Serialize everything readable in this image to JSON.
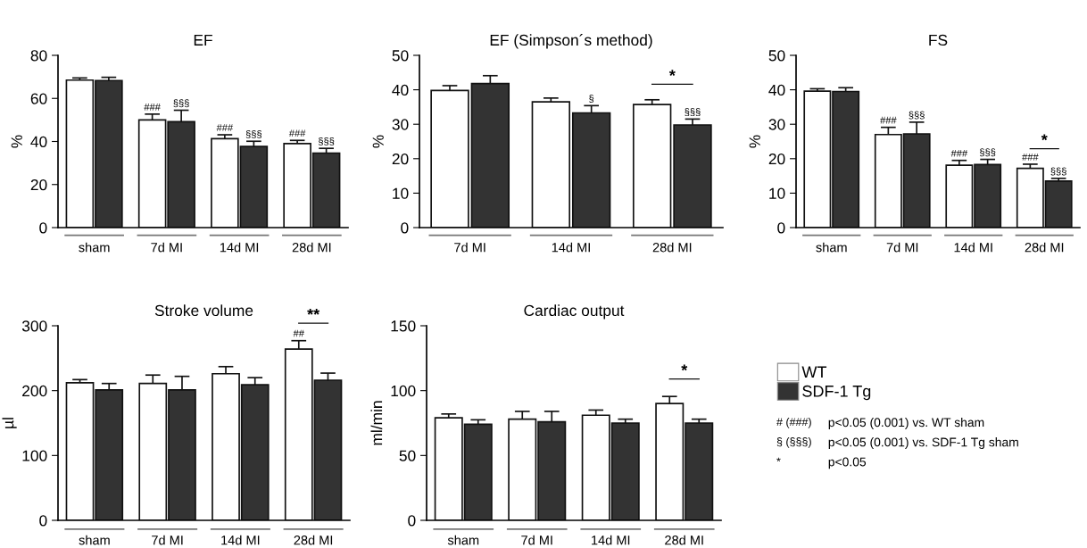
{
  "chart_data": [
    {
      "type": "bar",
      "title": "EF",
      "ylabel": "%",
      "categories": [
        "sham",
        "7d MI",
        "14d MI",
        "28d MI"
      ],
      "ylim": [
        0,
        80
      ],
      "yticks": [
        0,
        20,
        40,
        60,
        80
      ],
      "grid": false,
      "legend": false,
      "series": [
        {
          "color": "#ffffff",
          "values": [
            68.5,
            50,
            41.3,
            39
          ],
          "errors": [
            1,
            2.7,
            1.8,
            1.5
          ]
        },
        {
          "color": "#333333",
          "values": [
            68.3,
            49.2,
            37.7,
            34.6
          ],
          "errors": [
            1.5,
            5.3,
            2.4,
            2.2
          ]
        }
      ],
      "annotations": [
        {
          "text": "###",
          "x": "7d MI",
          "y": 50
        },
        {
          "text": "§§§",
          "x": "7d MI",
          "y": 49.2
        },
        {
          "text": "###",
          "x": "14d MI",
          "y": 41.3
        },
        {
          "text": "§§§",
          "x": "14d MI",
          "y": 37.7
        },
        {
          "text": "###",
          "x": "28d MI",
          "y": 39
        },
        {
          "text": "§§§",
          "x": "28d MI",
          "y": 34.6
        }
      ]
    },
    {
      "type": "bar",
      "title": "EF (Simpson´s method)",
      "ylabel": "%",
      "categories": [
        "7d MI",
        "14d MI",
        "28d MI"
      ],
      "ylim": [
        0,
        50
      ],
      "yticks": [
        0,
        10,
        20,
        30,
        40,
        50
      ],
      "grid": false,
      "legend": false,
      "series": [
        {
          "color": "#ffffff",
          "values": [
            39.8,
            36.5,
            35.7
          ],
          "errors": [
            1.4,
            1.1,
            1.4
          ]
        },
        {
          "color": "#333333",
          "values": [
            41.8,
            33.3,
            29.8
          ],
          "errors": [
            2.3,
            2.1,
            1.7
          ]
        }
      ],
      "annotations": [
        {
          "text": "§",
          "x": "14d MI",
          "y": 33.3
        },
        {
          "text": "§§§",
          "x": "28d MI",
          "y": 29.8
        },
        "*"
      ]
    },
    {
      "type": "bar",
      "title": "FS",
      "ylabel": "%",
      "categories": [
        "sham",
        "7d MI",
        "14d MI",
        "28d MI"
      ],
      "ylim": [
        0,
        50
      ],
      "yticks": [
        0,
        10,
        20,
        30,
        40,
        50
      ],
      "grid": false,
      "legend": false,
      "series": [
        {
          "color": "#ffffff",
          "values": [
            39.6,
            27,
            18.1,
            17.2
          ],
          "errors": [
            0.7,
            2.1,
            1.4,
            1.2
          ]
        },
        {
          "color": "#333333",
          "values": [
            39.5,
            27.2,
            18.3,
            13.5
          ],
          "errors": [
            1.1,
            3.4,
            1.5,
            0.8
          ]
        }
      ],
      "annotations": [
        {
          "text": "###",
          "x": "7d MI",
          "y": 27
        },
        {
          "text": "§§§",
          "x": "7d MI",
          "y": 27.2
        },
        {
          "text": "###",
          "x": "14d MI",
          "y": 18.1
        },
        {
          "text": "§§§",
          "x": "14d MI",
          "y": 18.3
        },
        {
          "text": "###",
          "x": "28d MI",
          "y": 17.2
        },
        {
          "text": "§§§",
          "x": "28d MI",
          "y": 13.5
        },
        "*"
      ]
    },
    {
      "type": "bar",
      "title": "Stroke volume",
      "ylabel": "µl",
      "categories": [
        "sham",
        "7d MI",
        "14d MI",
        "28d MI"
      ],
      "ylim": [
        0,
        300
      ],
      "yticks": [
        0,
        100,
        200,
        300
      ],
      "grid": false,
      "legend": false,
      "series": [
        {
          "color": "#ffffff",
          "values": [
            212,
            211,
            226,
            264
          ],
          "errors": [
            5,
            13,
            11,
            13
          ]
        },
        {
          "color": "#333333",
          "values": [
            201,
            201,
            209,
            216
          ],
          "errors": [
            10,
            21,
            11,
            11
          ]
        }
      ],
      "annotations": [
        {
          "text": "##",
          "x": "28d MI",
          "y": 264
        },
        "**"
      ]
    },
    {
      "type": "bar",
      "title": "Cardiac output",
      "ylabel": "ml/min",
      "categories": [
        "sham",
        "7d MI",
        "14d MI",
        "28d MI"
      ],
      "ylim": [
        0,
        150
      ],
      "yticks": [
        0,
        50,
        100,
        150
      ],
      "grid": false,
      "legend": "right",
      "series": [
        {
          "name": "WT",
          "color": "#ffffff",
          "values": [
            79,
            78,
            81,
            90
          ],
          "errors": [
            3,
            6,
            4,
            5.5
          ]
        },
        {
          "name": "SDF-1 Tg",
          "color": "#333333",
          "values": [
            74,
            76,
            75,
            75
          ],
          "errors": [
            3.5,
            8,
            3,
            3
          ]
        }
      ],
      "annotations": [
        "*"
      ]
    },
    {
      "type": "other",
      "annotations": [
        "# (###)\tp<0.05 (0.001) vs. WT sham",
        "§ (§§§)\tp<0.05 (0.001) vs. SDF-1 Tg sham",
        "*\tp<0.05"
      ]
    }
  ]
}
